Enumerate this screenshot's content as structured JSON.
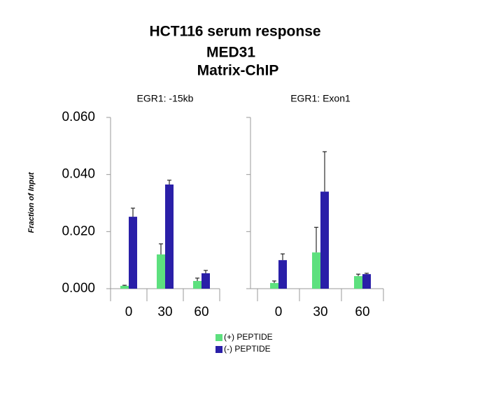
{
  "chart_data": {
    "type": "bar",
    "title": "HCT116 serum response",
    "subtitle": "MED31",
    "subtitle2": "Matrix-ChIP",
    "ylabel": "Fraction of Input",
    "ylim": [
      0,
      0.06
    ],
    "yticks": [
      {
        "value": 0,
        "label": "0.000"
      },
      {
        "value": 0.02,
        "label": "0.020"
      },
      {
        "value": 0.04,
        "label": "0.040"
      },
      {
        "value": 0.06,
        "label": "0.060"
      }
    ],
    "panels": [
      {
        "title": "EGR1: -15kb",
        "categories": [
          "0",
          "30",
          "60"
        ]
      },
      {
        "title": "EGR1: Exon1",
        "categories": [
          "0",
          "30",
          "60"
        ]
      }
    ],
    "series": [
      {
        "name": "(+) PEPTIDE",
        "color": "#5de07e",
        "values": [
          [
            0.001,
            0.012,
            0.0027
          ],
          [
            0.002,
            0.0127,
            0.0044
          ]
        ],
        "errors": [
          [
            0.0002,
            0.0037,
            0.001
          ],
          [
            0.0007,
            0.0088,
            0.0007
          ]
        ]
      },
      {
        "name": "(-) PEPTIDE",
        "color": "#2a1fa8",
        "values": [
          [
            0.0252,
            0.0365,
            0.0054
          ],
          [
            0.01,
            0.034,
            0.0051
          ]
        ],
        "errors": [
          [
            0.003,
            0.0015,
            0.001
          ],
          [
            0.0022,
            0.014,
            0.0003
          ]
        ]
      }
    ]
  }
}
